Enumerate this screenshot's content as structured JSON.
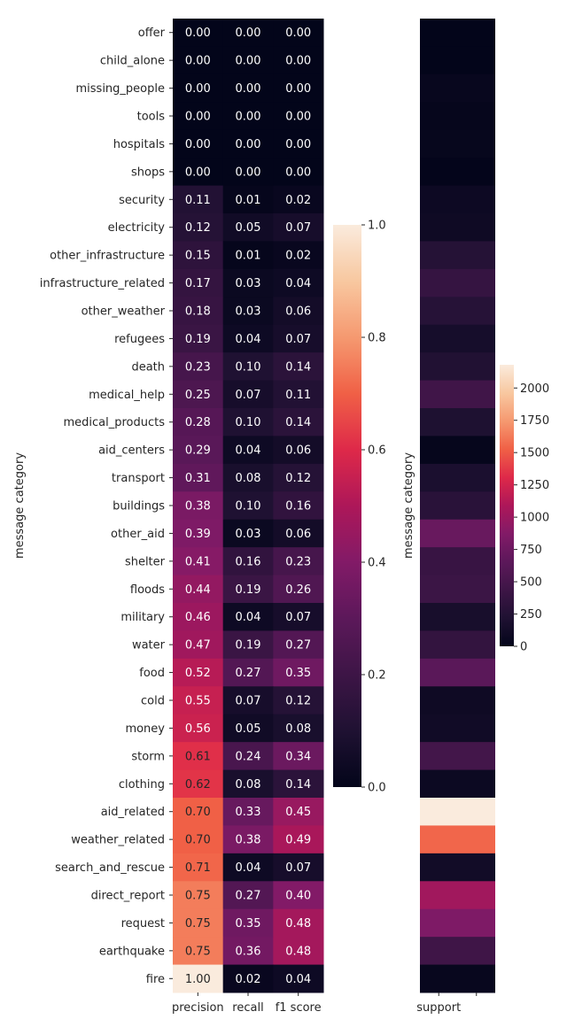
{
  "chart_data": [
    {
      "type": "heatmap",
      "ylabel": "message category",
      "columns": [
        "precision",
        "recall",
        "f1 score"
      ],
      "rows": [
        "offer",
        "child_alone",
        "missing_people",
        "tools",
        "hospitals",
        "shops",
        "security",
        "electricity",
        "other_infrastructure",
        "infrastructure_related",
        "other_weather",
        "refugees",
        "death",
        "medical_help",
        "medical_products",
        "aid_centers",
        "transport",
        "buildings",
        "other_aid",
        "shelter",
        "floods",
        "military",
        "water",
        "food",
        "cold",
        "money",
        "storm",
        "clothing",
        "aid_related",
        "weather_related",
        "search_and_rescue",
        "direct_report",
        "request",
        "earthquake",
        "fire"
      ],
      "values": [
        [
          0.0,
          0.0,
          0.0
        ],
        [
          0.0,
          0.0,
          0.0
        ],
        [
          0.0,
          0.0,
          0.0
        ],
        [
          0.0,
          0.0,
          0.0
        ],
        [
          0.0,
          0.0,
          0.0
        ],
        [
          0.0,
          0.0,
          0.0
        ],
        [
          0.11,
          0.01,
          0.02
        ],
        [
          0.12,
          0.05,
          0.07
        ],
        [
          0.15,
          0.01,
          0.02
        ],
        [
          0.17,
          0.03,
          0.04
        ],
        [
          0.18,
          0.03,
          0.06
        ],
        [
          0.19,
          0.04,
          0.07
        ],
        [
          0.23,
          0.1,
          0.14
        ],
        [
          0.25,
          0.07,
          0.11
        ],
        [
          0.28,
          0.1,
          0.14
        ],
        [
          0.29,
          0.04,
          0.06
        ],
        [
          0.31,
          0.08,
          0.12
        ],
        [
          0.38,
          0.1,
          0.16
        ],
        [
          0.39,
          0.03,
          0.06
        ],
        [
          0.41,
          0.16,
          0.23
        ],
        [
          0.44,
          0.19,
          0.26
        ],
        [
          0.46,
          0.04,
          0.07
        ],
        [
          0.47,
          0.19,
          0.27
        ],
        [
          0.52,
          0.27,
          0.35
        ],
        [
          0.55,
          0.07,
          0.12
        ],
        [
          0.56,
          0.05,
          0.08
        ],
        [
          0.61,
          0.24,
          0.34
        ],
        [
          0.62,
          0.08,
          0.14
        ],
        [
          0.7,
          0.33,
          0.45
        ],
        [
          0.7,
          0.38,
          0.49
        ],
        [
          0.71,
          0.04,
          0.07
        ],
        [
          0.75,
          0.27,
          0.4
        ],
        [
          0.75,
          0.35,
          0.48
        ],
        [
          0.75,
          0.36,
          0.48
        ],
        [
          1.0,
          0.02,
          0.04
        ]
      ],
      "vmin": 0,
      "vmax": 1,
      "colorbar_ticks": [
        "0.0",
        "0.2",
        "0.4",
        "0.6",
        "0.8",
        "1.0"
      ],
      "annotated": true,
      "colormap": "rocket"
    },
    {
      "type": "heatmap",
      "ylabel": "message category",
      "columns": [
        "support"
      ],
      "values": [
        0,
        0,
        40,
        20,
        30,
        5,
        80,
        90,
        260,
        380,
        270,
        150,
        230,
        460,
        210,
        20,
        190,
        290,
        720,
        400,
        420,
        160,
        360,
        640,
        90,
        110,
        480,
        70,
        2180,
        1550,
        120,
        1030,
        850,
        450,
        40
      ],
      "vmin": 0,
      "vmax": 2180,
      "colorbar_ticks": [
        "0",
        "250",
        "500",
        "750",
        "1000",
        "1250",
        "1500",
        "1750",
        "2000"
      ],
      "annotated": false,
      "colormap": "rocket"
    }
  ]
}
